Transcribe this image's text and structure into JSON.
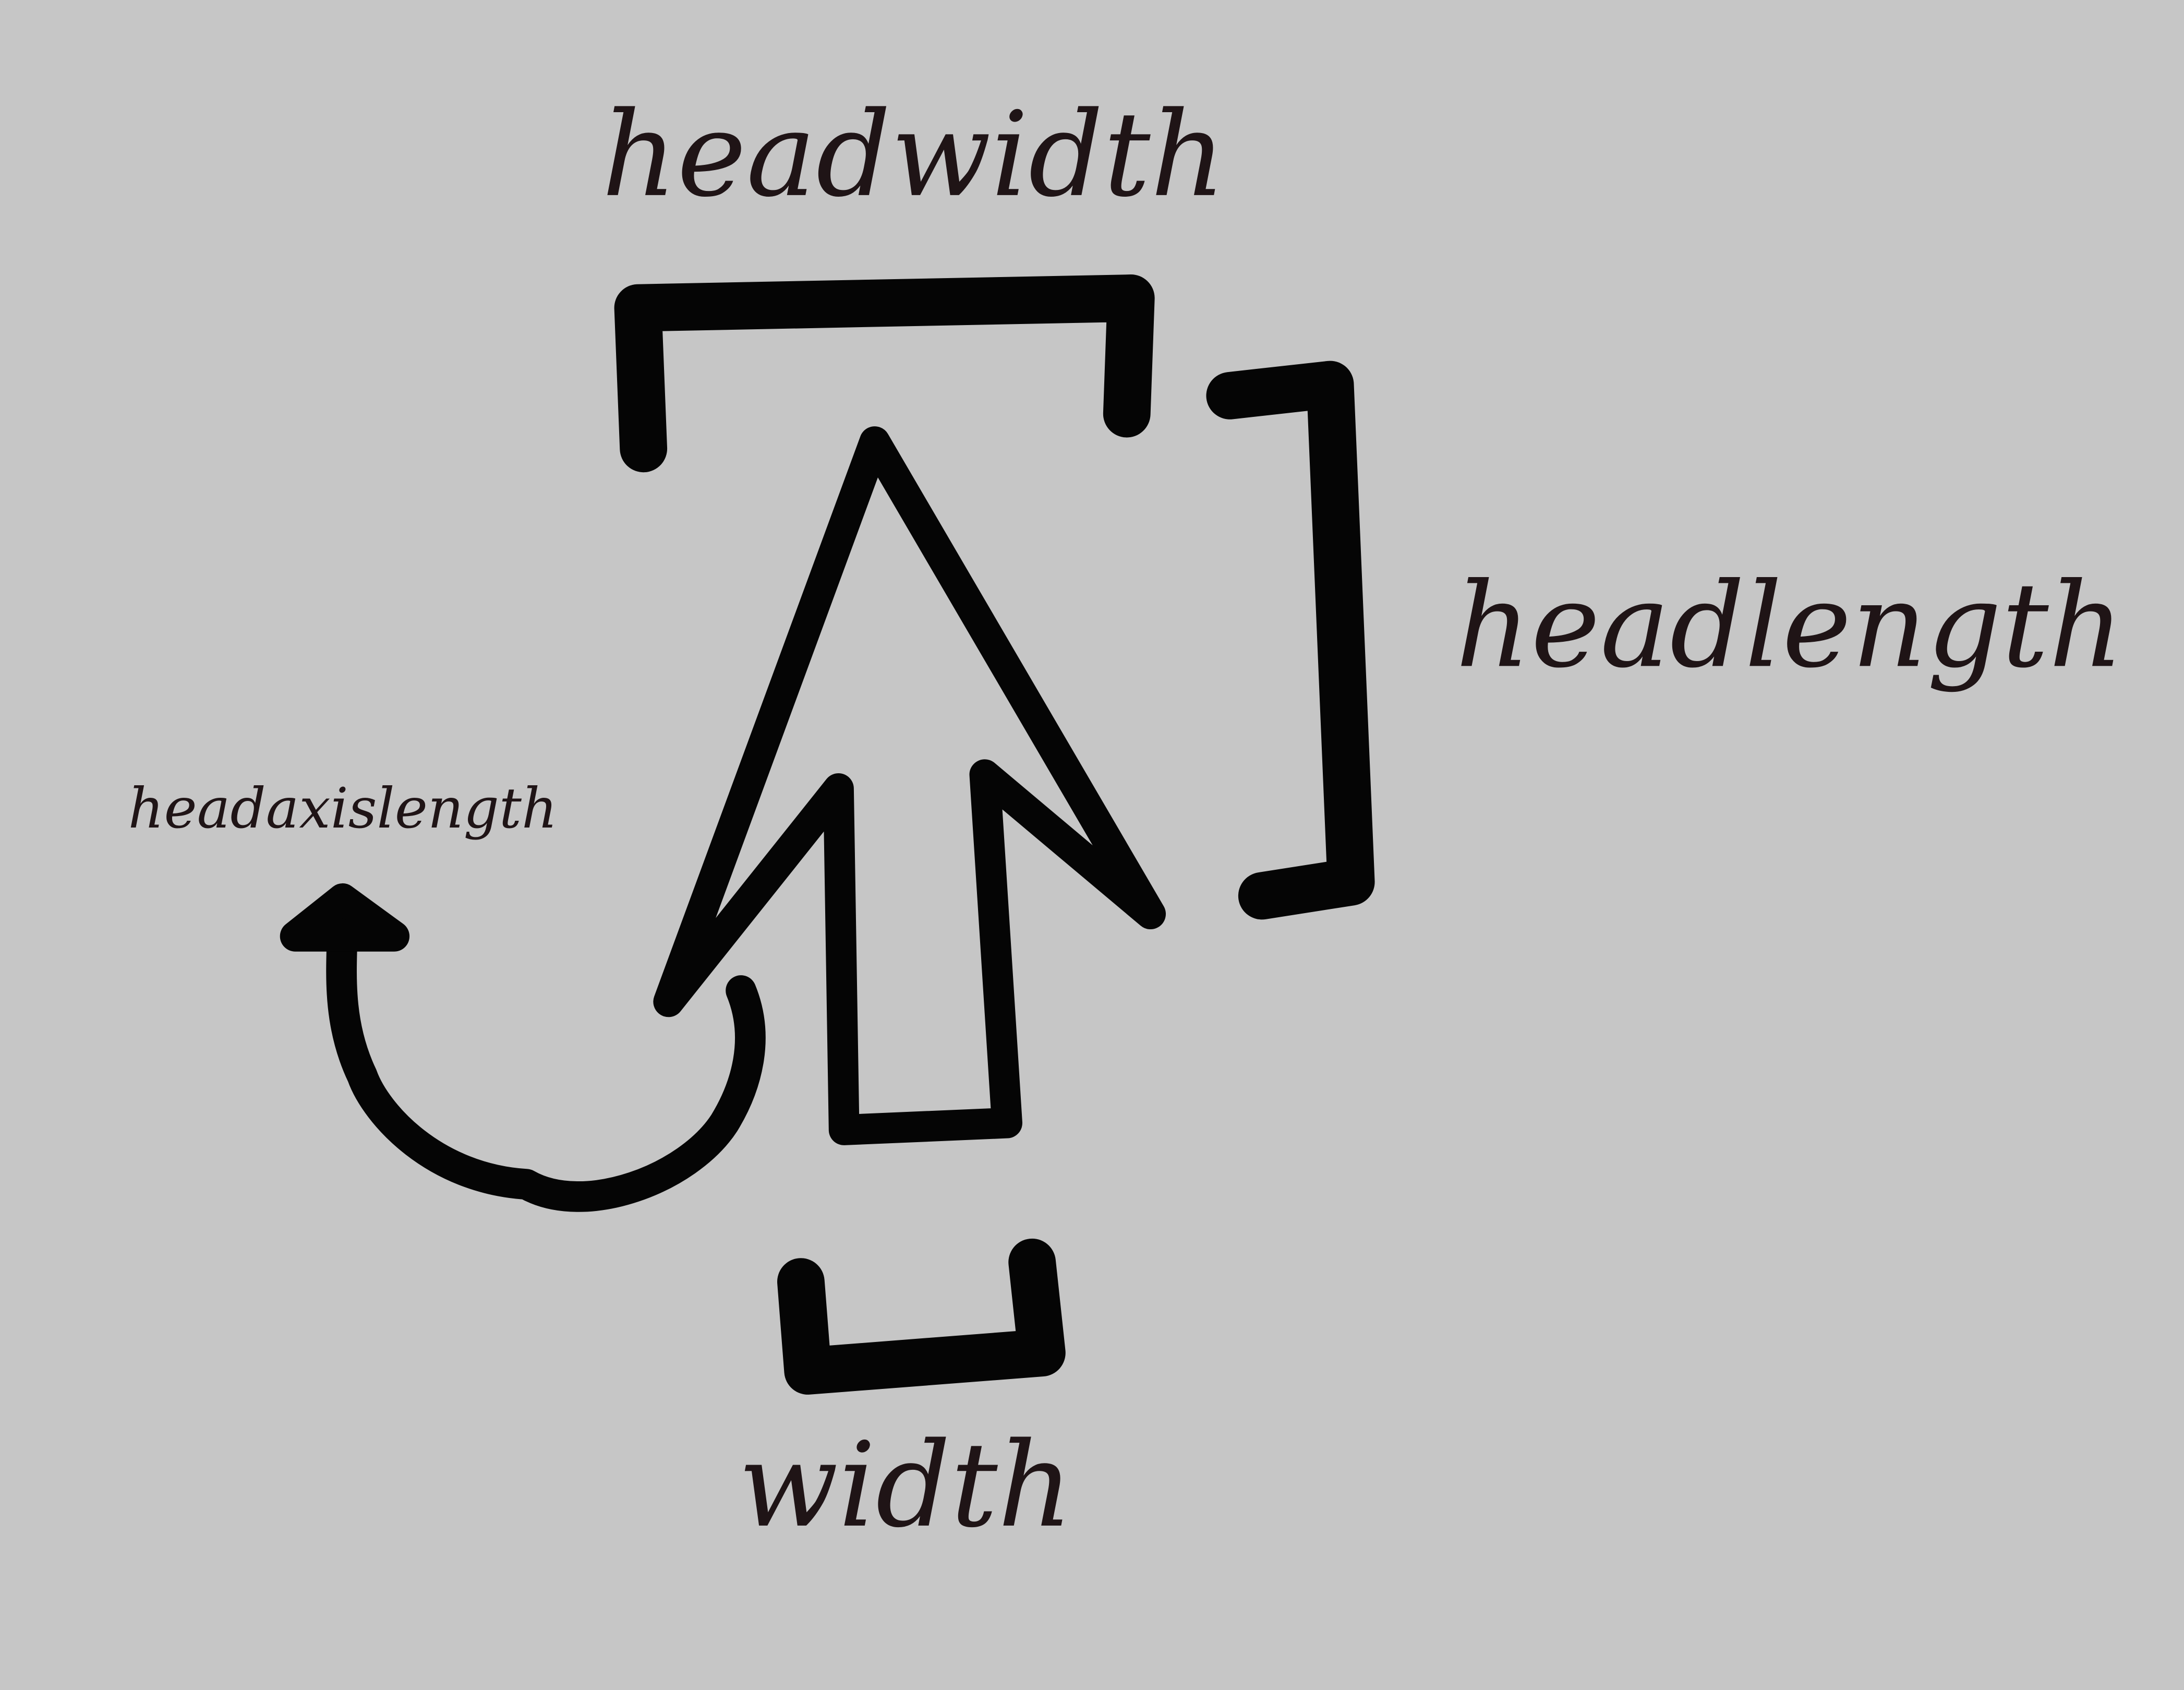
{
  "labels": {
    "headwidth": "headwidth",
    "headlength": "headlength",
    "headaxislength": "headaxislength",
    "width": "width"
  },
  "colors": {
    "background": "#c6c6c6",
    "stroke": "#050505",
    "text": "#1f1416"
  }
}
